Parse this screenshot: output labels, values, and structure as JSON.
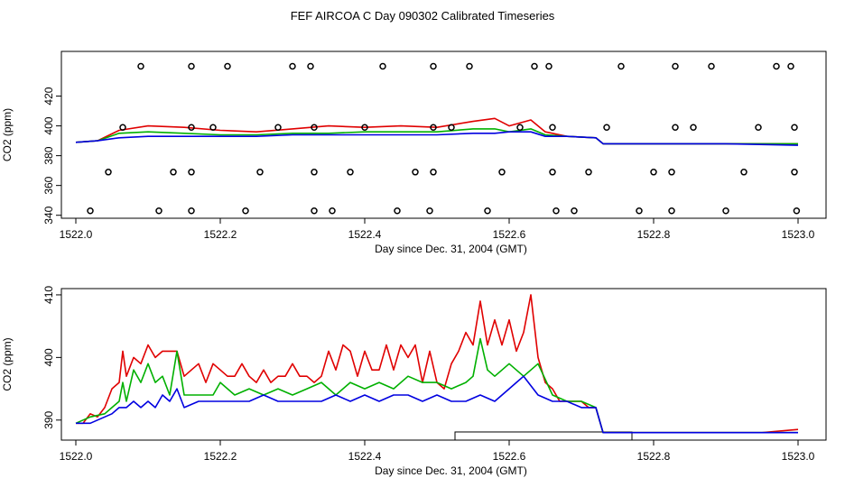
{
  "title": "FEF AIRCOA C  Day 090302  Calibrated Timeseries",
  "chart_data": [
    {
      "type": "line",
      "panel": "top",
      "xlabel": "Day since Dec. 31, 2004 (GMT)",
      "ylabel": "CO2 (ppm)",
      "xlim": [
        1522.0,
        1523.0
      ],
      "ylim": [
        338,
        450
      ],
      "xticks": [
        1522.0,
        1522.2,
        1522.4,
        1522.6,
        1522.8,
        1523.0
      ],
      "xtick_labels": [
        "1522.0",
        "1522.2",
        "1522.4",
        "1522.6",
        "1522.8",
        "1523.0"
      ],
      "yticks": [
        340,
        360,
        380,
        400,
        420
      ],
      "ytick_labels": [
        "340",
        "360",
        "380",
        "400",
        "420"
      ],
      "series": [
        {
          "name": "red",
          "color": "#e00000",
          "x": [
            1522.0,
            1522.03,
            1522.06,
            1522.1,
            1522.15,
            1522.2,
            1522.25,
            1522.3,
            1522.35,
            1522.4,
            1522.45,
            1522.5,
            1522.55,
            1522.58,
            1522.6,
            1522.63,
            1522.65,
            1522.68,
            1522.72,
            1522.73,
            1522.8,
            1522.9,
            1523.0
          ],
          "y": [
            389,
            390,
            397,
            400,
            399,
            397,
            396,
            398,
            400,
            399,
            400,
            399,
            403,
            405,
            400,
            404,
            396,
            393,
            392,
            388,
            388,
            388,
            388
          ]
        },
        {
          "name": "green",
          "color": "#00b000",
          "x": [
            1522.0,
            1522.03,
            1522.06,
            1522.1,
            1522.15,
            1522.2,
            1522.25,
            1522.3,
            1522.35,
            1522.4,
            1522.45,
            1522.5,
            1522.55,
            1522.58,
            1522.6,
            1522.63,
            1522.65,
            1522.68,
            1522.72,
            1522.73,
            1522.8,
            1522.9,
            1523.0
          ],
          "y": [
            389,
            390,
            395,
            396,
            395,
            394,
            394,
            395,
            395,
            396,
            396,
            396,
            398,
            398,
            396,
            398,
            394,
            393,
            392,
            388,
            388,
            388,
            388
          ]
        },
        {
          "name": "blue",
          "color": "#0000e0",
          "x": [
            1522.0,
            1522.03,
            1522.06,
            1522.1,
            1522.15,
            1522.2,
            1522.25,
            1522.3,
            1522.35,
            1522.4,
            1522.45,
            1522.5,
            1522.55,
            1522.58,
            1522.6,
            1522.63,
            1522.65,
            1522.68,
            1522.72,
            1522.73,
            1522.8,
            1522.9,
            1523.0
          ],
          "y": [
            389,
            390,
            392,
            393,
            393,
            393,
            393,
            394,
            394,
            394,
            394,
            394,
            395,
            395,
            396,
            396,
            393,
            393,
            392,
            388,
            388,
            388,
            387
          ]
        }
      ],
      "markers": {
        "shape": "open-circle",
        "points": [
          [
            1522.09,
            440
          ],
          [
            1522.16,
            440
          ],
          [
            1522.21,
            440
          ],
          [
            1522.3,
            440
          ],
          [
            1522.325,
            440
          ],
          [
            1522.425,
            440
          ],
          [
            1522.495,
            440
          ],
          [
            1522.545,
            440
          ],
          [
            1522.635,
            440
          ],
          [
            1522.655,
            440
          ],
          [
            1522.755,
            440
          ],
          [
            1522.83,
            440
          ],
          [
            1522.88,
            440
          ],
          [
            1522.97,
            440
          ],
          [
            1522.99,
            440
          ],
          [
            1522.065,
            399
          ],
          [
            1522.16,
            399
          ],
          [
            1522.19,
            399
          ],
          [
            1522.28,
            399
          ],
          [
            1522.33,
            399
          ],
          [
            1522.4,
            399
          ],
          [
            1522.495,
            399
          ],
          [
            1522.52,
            399
          ],
          [
            1522.615,
            399
          ],
          [
            1522.66,
            399
          ],
          [
            1522.735,
            399
          ],
          [
            1522.83,
            399
          ],
          [
            1522.855,
            399
          ],
          [
            1522.945,
            399
          ],
          [
            1522.995,
            399
          ],
          [
            1522.045,
            369
          ],
          [
            1522.135,
            369
          ],
          [
            1522.16,
            369
          ],
          [
            1522.255,
            369
          ],
          [
            1522.33,
            369
          ],
          [
            1522.38,
            369
          ],
          [
            1522.47,
            369
          ],
          [
            1522.495,
            369
          ],
          [
            1522.59,
            369
          ],
          [
            1522.66,
            369
          ],
          [
            1522.71,
            369
          ],
          [
            1522.8,
            369
          ],
          [
            1522.825,
            369
          ],
          [
            1522.925,
            369
          ],
          [
            1522.995,
            369
          ],
          [
            1522.02,
            343
          ],
          [
            1522.115,
            343
          ],
          [
            1522.16,
            343
          ],
          [
            1522.235,
            343
          ],
          [
            1522.33,
            343
          ],
          [
            1522.355,
            343
          ],
          [
            1522.445,
            343
          ],
          [
            1522.49,
            343
          ],
          [
            1522.57,
            343
          ],
          [
            1522.665,
            343
          ],
          [
            1522.69,
            343
          ],
          [
            1522.78,
            343
          ],
          [
            1522.825,
            343
          ],
          [
            1522.9,
            343
          ],
          [
            1522.998,
            343
          ]
        ]
      }
    },
    {
      "type": "line",
      "panel": "bottom",
      "xlabel": "Day since Dec. 31, 2004 (GMT)",
      "ylabel": "CO2 (ppm)",
      "xlim": [
        1522.0,
        1523.0
      ],
      "ylim": [
        386.8,
        411
      ],
      "xticks": [
        1522.0,
        1522.2,
        1522.4,
        1522.6,
        1522.8,
        1523.0
      ],
      "xtick_labels": [
        "1522.0",
        "1522.2",
        "1522.4",
        "1522.6",
        "1522.8",
        "1523.0"
      ],
      "yticks": [
        390,
        400,
        410
      ],
      "ytick_labels": [
        "390",
        "400",
        "410"
      ],
      "series": [
        {
          "name": "red",
          "color": "#e00000",
          "x": [
            1522.0,
            1522.01,
            1522.02,
            1522.03,
            1522.04,
            1522.05,
            1522.06,
            1522.065,
            1522.07,
            1522.08,
            1522.09,
            1522.1,
            1522.11,
            1522.12,
            1522.13,
            1522.14,
            1522.15,
            1522.16,
            1522.17,
            1522.18,
            1522.19,
            1522.2,
            1522.21,
            1522.22,
            1522.23,
            1522.24,
            1522.25,
            1522.26,
            1522.27,
            1522.28,
            1522.29,
            1522.3,
            1522.31,
            1522.32,
            1522.33,
            1522.34,
            1522.35,
            1522.36,
            1522.37,
            1522.38,
            1522.39,
            1522.4,
            1522.41,
            1522.42,
            1522.43,
            1522.44,
            1522.45,
            1522.46,
            1522.47,
            1522.48,
            1522.49,
            1522.5,
            1522.51,
            1522.52,
            1522.53,
            1522.54,
            1522.55,
            1522.56,
            1522.57,
            1522.58,
            1522.59,
            1522.6,
            1522.61,
            1522.62,
            1522.63,
            1522.64,
            1522.65,
            1522.66,
            1522.67,
            1522.68,
            1522.69,
            1522.7,
            1522.71,
            1522.72,
            1522.73,
            1522.75,
            1522.8,
            1522.85,
            1522.9,
            1522.95,
            1523.0
          ],
          "y": [
            389.5,
            389.5,
            391,
            390.5,
            392,
            395,
            396,
            401,
            397,
            400,
            399,
            402,
            400,
            401,
            401,
            401,
            397,
            398,
            399,
            396,
            399,
            398,
            397,
            397,
            399,
            397,
            396,
            398,
            396,
            397,
            397,
            399,
            397,
            397,
            396,
            397,
            401,
            398,
            402,
            401,
            397,
            401,
            398,
            398,
            402,
            398,
            402,
            400,
            402,
            396,
            401,
            396,
            395,
            399,
            401,
            404,
            402,
            409,
            402,
            406,
            402,
            406,
            401,
            404,
            410,
            400,
            396,
            395,
            393,
            393,
            393,
            393,
            392,
            392,
            388,
            388,
            388,
            388,
            388,
            388,
            388.5
          ]
        },
        {
          "name": "green",
          "color": "#00b000",
          "x": [
            1522.0,
            1522.02,
            1522.04,
            1522.05,
            1522.06,
            1522.065,
            1522.07,
            1522.08,
            1522.09,
            1522.1,
            1522.11,
            1522.12,
            1522.13,
            1522.14,
            1522.15,
            1522.17,
            1522.19,
            1522.2,
            1522.22,
            1522.24,
            1522.26,
            1522.28,
            1522.3,
            1522.32,
            1522.34,
            1522.36,
            1522.38,
            1522.4,
            1522.42,
            1522.44,
            1522.46,
            1522.48,
            1522.5,
            1522.52,
            1522.54,
            1522.55,
            1522.56,
            1522.57,
            1522.58,
            1522.6,
            1522.62,
            1522.64,
            1522.66,
            1522.68,
            1522.7,
            1522.72,
            1522.73,
            1522.8,
            1522.9,
            1523.0
          ],
          "y": [
            389.5,
            390.5,
            391,
            392,
            393,
            396,
            393,
            398,
            396,
            399,
            396,
            397,
            394,
            401,
            394,
            394,
            394,
            396,
            394,
            395,
            394,
            395,
            394,
            395,
            396,
            394,
            396,
            395,
            396,
            395,
            397,
            396,
            396,
            395,
            396,
            397,
            403,
            398,
            397,
            399,
            397,
            399,
            394,
            393,
            393,
            392,
            388,
            388,
            388,
            388
          ]
        },
        {
          "name": "blue",
          "color": "#0000e0",
          "x": [
            1522.0,
            1522.02,
            1522.04,
            1522.05,
            1522.06,
            1522.07,
            1522.08,
            1522.09,
            1522.1,
            1522.11,
            1522.12,
            1522.13,
            1522.14,
            1522.15,
            1522.17,
            1522.19,
            1522.2,
            1522.22,
            1522.24,
            1522.26,
            1522.28,
            1522.3,
            1522.32,
            1522.34,
            1522.36,
            1522.38,
            1522.4,
            1522.42,
            1522.44,
            1522.46,
            1522.48,
            1522.5,
            1522.52,
            1522.54,
            1522.56,
            1522.58,
            1522.6,
            1522.61,
            1522.62,
            1522.64,
            1522.66,
            1522.68,
            1522.7,
            1522.72,
            1522.73,
            1522.8,
            1522.9,
            1523.0
          ],
          "y": [
            389.5,
            389.5,
            390.5,
            391,
            392,
            392,
            393,
            392,
            393,
            392,
            394,
            393,
            395,
            392,
            393,
            393,
            393,
            393,
            393,
            394,
            393,
            393,
            393,
            393,
            394,
            393,
            394,
            393,
            394,
            394,
            393,
            394,
            393,
            393,
            394,
            393,
            395,
            396,
            397,
            394,
            393,
            393,
            392,
            392,
            388,
            388,
            388,
            388
          ]
        }
      ],
      "bar": {
        "x_start": 1522.525,
        "x_end": 1522.77,
        "y_low": 386.8,
        "y_high": 388.1
      }
    }
  ]
}
